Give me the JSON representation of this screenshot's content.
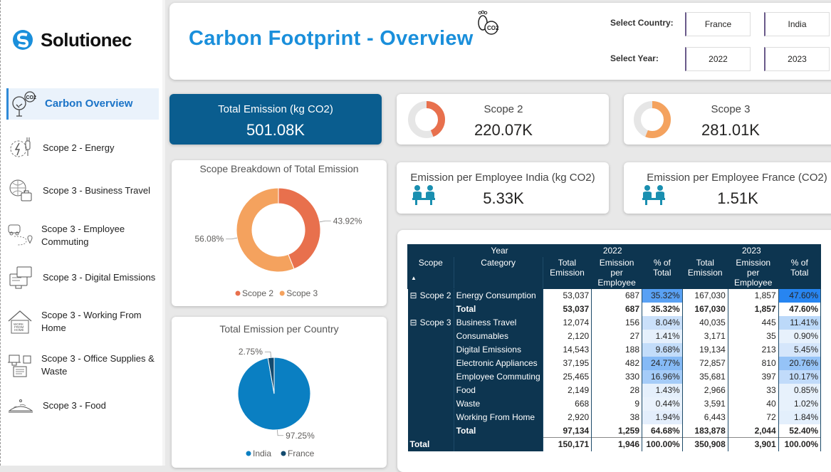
{
  "sidebar": {
    "brand": "Solutionec",
    "items": [
      {
        "label": "Carbon Overview",
        "icon": "co2-tree-icon"
      },
      {
        "label": "Scope 2 - Energy",
        "icon": "energy-plug-icon"
      },
      {
        "label": "Scope 3 - Business Travel",
        "icon": "business-travel-icon"
      },
      {
        "label": "Scope 3 - Employee Commuting",
        "icon": "commuting-route-icon"
      },
      {
        "label": "Scope 3 - Digital Emissions",
        "icon": "digital-devices-icon"
      },
      {
        "label": "Scope 3 - Working From Home",
        "icon": "work-from-home-icon"
      },
      {
        "label": "Scope 3 - Office Supplies & Waste",
        "icon": "office-supplies-icon"
      },
      {
        "label": "Scope 3 - Food",
        "icon": "food-icon"
      }
    ]
  },
  "header": {
    "title": "Carbon Footprint - Overview",
    "country_label": "Select Country:",
    "countries": [
      "France",
      "India"
    ],
    "year_label": "Select Year:",
    "years": [
      "2022",
      "2023"
    ]
  },
  "kpis": {
    "total": {
      "title": "Total Emission (kg CO2)",
      "value": "501.08K"
    },
    "scope2": {
      "title": "Scope 2",
      "value": "220.07K",
      "ring_fraction": 0.4392
    },
    "scope3": {
      "title": "Scope 3",
      "value": "281.01K",
      "ring_fraction": 0.5608
    },
    "india": {
      "title": "Emission per Employee India (kg CO2)",
      "value": "5.33K"
    },
    "france": {
      "title": "Emission per Employee France (CO2)",
      "value": "1.51K"
    }
  },
  "chart_data": [
    {
      "type": "pie",
      "title": "Scope Breakdown of Total Emission",
      "donut": true,
      "series": [
        {
          "name": "Scope 2",
          "value": 43.92,
          "label": "43.92%",
          "color": "#e8704d"
        },
        {
          "name": "Scope 3",
          "value": 56.08,
          "label": "56.08%",
          "color": "#f4a25e"
        }
      ],
      "legend": "bottom"
    },
    {
      "type": "pie",
      "title": "Total Emission per Country",
      "donut": false,
      "series": [
        {
          "name": "India",
          "value": 97.25,
          "label": "97.25%",
          "color": "#0a7fc2"
        },
        {
          "name": "France",
          "value": 2.75,
          "label": "2.75%",
          "color": "#124a6e"
        }
      ],
      "legend": "bottom"
    }
  ],
  "matrix": {
    "h_year": "Year",
    "h_scope": "Scope",
    "h_category": "Category",
    "years": [
      "2022",
      "2023"
    ],
    "cols": [
      "Total Emission",
      "Emission per Employee",
      "% of Total"
    ],
    "rows": [
      {
        "scope": "Scope 2",
        "expand": "⊟",
        "cat": "Energy Consumption",
        "v": [
          "53,037",
          "687",
          "35.32%",
          "167,030",
          "1,857",
          "47.60%"
        ],
        "p": [
          35.32,
          47.6
        ]
      },
      {
        "scope": "",
        "cat": "Total",
        "bold": true,
        "v": [
          "53,037",
          "687",
          "35.32%",
          "167,030",
          "1,857",
          "47.60%"
        ]
      },
      {
        "scope": "Scope 3",
        "expand": "⊟",
        "cat": "Business Travel",
        "v": [
          "12,074",
          "156",
          "8.04%",
          "40,035",
          "445",
          "11.41%"
        ],
        "p": [
          8.04,
          11.41
        ]
      },
      {
        "scope": "",
        "cat": "Consumables",
        "v": [
          "2,120",
          "27",
          "1.41%",
          "3,171",
          "35",
          "0.90%"
        ],
        "p": [
          1.41,
          0.9
        ]
      },
      {
        "scope": "",
        "cat": "Digital Emissions",
        "v": [
          "14,543",
          "188",
          "9.68%",
          "19,134",
          "213",
          "5.45%"
        ],
        "p": [
          9.68,
          5.45
        ]
      },
      {
        "scope": "",
        "cat": "Electronic Appliances",
        "v": [
          "37,195",
          "482",
          "24.77%",
          "72,857",
          "810",
          "20.76%"
        ],
        "p": [
          24.77,
          20.76
        ]
      },
      {
        "scope": "",
        "cat": "Employee Commuting",
        "v": [
          "25,465",
          "330",
          "16.96%",
          "35,681",
          "397",
          "10.17%"
        ],
        "p": [
          16.96,
          10.17
        ]
      },
      {
        "scope": "",
        "cat": "Food",
        "v": [
          "2,149",
          "28",
          "1.43%",
          "2,966",
          "33",
          "0.85%"
        ],
        "p": [
          1.43,
          0.85
        ]
      },
      {
        "scope": "",
        "cat": "Waste",
        "v": [
          "668",
          "9",
          "0.44%",
          "3,591",
          "40",
          "1.02%"
        ],
        "p": [
          0.44,
          1.02
        ]
      },
      {
        "scope": "",
        "cat": "Working From Home",
        "v": [
          "2,920",
          "38",
          "1.94%",
          "6,443",
          "72",
          "1.84%"
        ],
        "p": [
          1.94,
          1.84
        ]
      },
      {
        "scope": "",
        "cat": "Total",
        "bold": true,
        "v": [
          "97,134",
          "1,259",
          "64.68%",
          "183,878",
          "2,044",
          "52.40%"
        ]
      },
      {
        "scope": "Total",
        "cat": "",
        "bold": true,
        "grand": true,
        "v": [
          "150,171",
          "1,946",
          "100.00%",
          "350,908",
          "3,901",
          "100.00%"
        ]
      }
    ]
  }
}
